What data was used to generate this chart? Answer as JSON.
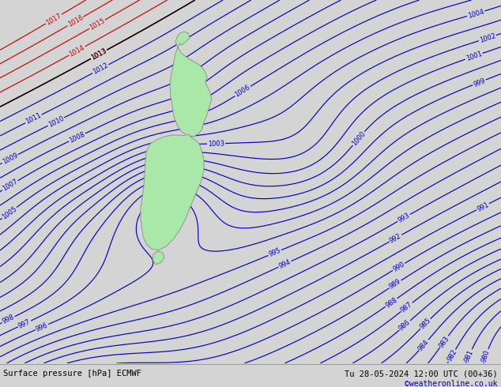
{
  "title_left": "Surface pressure [hPa] ECMWF",
  "title_right": "Tu 28-05-2024 12:00 UTC (00+36)",
  "credit": "©weatheronline.co.uk",
  "bg_color": "#d4d4d4",
  "land_color": "#aae8aa",
  "land_edge_color": "#888888",
  "isobar_blue": "#0000cc",
  "isobar_red": "#cc0000",
  "isobar_black": "#000000",
  "credit_color": "#0000bb",
  "figwidth": 6.34,
  "figheight": 4.9,
  "dpi": 100,
  "bottom_bg": "#e0e0e0",
  "text_color": "#000000",
  "lw_contour": 0.85,
  "label_fs": 6.0
}
